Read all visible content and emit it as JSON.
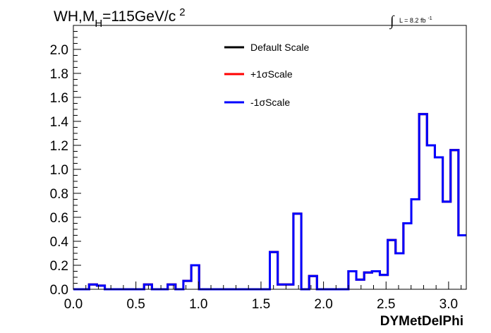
{
  "chart_data": {
    "type": "line",
    "drawstyle": "steps",
    "title": {
      "main": "WH,M",
      "sub": "H",
      "value": "=115GeV/c",
      "sup": "2"
    },
    "lumi": {
      "integral": "∫",
      "text": "L = 8.2 fb",
      "sup": "-1"
    },
    "xlabel": "DYMetDelPhi",
    "ylabel": "",
    "xlim": [
      0.0,
      3.1416
    ],
    "ylim": [
      0.0,
      2.2
    ],
    "x_ticks": [
      0.0,
      0.5,
      1.0,
      1.5,
      2.0,
      2.5,
      3.0
    ],
    "x_tick_labels": [
      "0.0",
      "0.5",
      "1.0",
      "1.5",
      "2.0",
      "2.5",
      "3.0"
    ],
    "y_ticks": [
      0.0,
      0.2,
      0.4,
      0.6,
      0.8,
      1.0,
      1.2,
      1.4,
      1.6,
      1.8,
      2.0
    ],
    "y_tick_labels": [
      "0.0",
      "0.2",
      "0.4",
      "0.6",
      "0.8",
      "1.0",
      "1.2",
      "1.4",
      "1.6",
      "1.8",
      "2.0"
    ],
    "grid": false,
    "legend_position": "top-center",
    "bin_edges": [
      0.0,
      0.0628,
      0.1257,
      0.1885,
      0.2513,
      0.3142,
      0.377,
      0.4398,
      0.5027,
      0.5655,
      0.6283,
      0.6912,
      0.754,
      0.8168,
      0.8796,
      0.9425,
      1.0053,
      1.0681,
      1.131,
      1.1938,
      1.2566,
      1.3195,
      1.3823,
      1.4451,
      1.508,
      1.5708,
      1.6336,
      1.6965,
      1.7593,
      1.8221,
      1.885,
      1.9478,
      2.0106,
      2.0735,
      2.1363,
      2.1991,
      2.2619,
      2.3248,
      2.3876,
      2.4504,
      2.5133,
      2.5761,
      2.6389,
      2.7018,
      2.7646,
      2.8274,
      2.8903,
      2.9531,
      3.0159,
      3.0788,
      3.1416
    ],
    "series": [
      {
        "name": "Default Scale",
        "color": "#000000",
        "values": [
          0,
          0,
          0.04,
          0.03,
          0,
          0,
          0,
          0,
          0,
          0.04,
          0,
          0,
          0.04,
          0,
          0.07,
          0.2,
          0,
          0,
          0,
          0,
          0,
          0,
          0,
          0,
          0,
          0.31,
          0.04,
          0.04,
          0.63,
          0,
          0.11,
          0,
          0,
          0,
          0,
          0.15,
          0.08,
          0.14,
          0.15,
          0.12,
          0.41,
          0.3,
          0.55,
          0.75,
          1.46,
          1.2,
          1.1,
          0.73,
          1.16,
          0.45
        ]
      },
      {
        "name": "+1σScale",
        "color": "#ff0000",
        "values": [
          0,
          0,
          0.04,
          0.03,
          0,
          0,
          0,
          0,
          0,
          0.04,
          0,
          0,
          0.04,
          0,
          0.07,
          0.2,
          0,
          0,
          0,
          0,
          0,
          0,
          0,
          0,
          0,
          0.31,
          0.04,
          0.04,
          0.63,
          0,
          0.11,
          0,
          0,
          0,
          0,
          0.15,
          0.08,
          0.14,
          0.15,
          0.12,
          0.41,
          0.3,
          0.55,
          0.75,
          1.46,
          1.2,
          1.1,
          0.73,
          1.16,
          0.45
        ]
      },
      {
        "name": "-1σScale",
        "color": "#0000ff",
        "values": [
          0,
          0,
          0.04,
          0.03,
          0,
          0,
          0,
          0,
          0,
          0.04,
          0,
          0,
          0.04,
          0,
          0.07,
          0.2,
          0,
          0,
          0,
          0,
          0,
          0,
          0,
          0,
          0,
          0.31,
          0.04,
          0.04,
          0.63,
          0,
          0.11,
          0,
          0,
          0,
          0,
          0.15,
          0.08,
          0.14,
          0.15,
          0.12,
          0.41,
          0.3,
          0.55,
          0.75,
          1.46,
          1.2,
          1.1,
          0.73,
          1.16,
          0.45
        ]
      }
    ]
  }
}
